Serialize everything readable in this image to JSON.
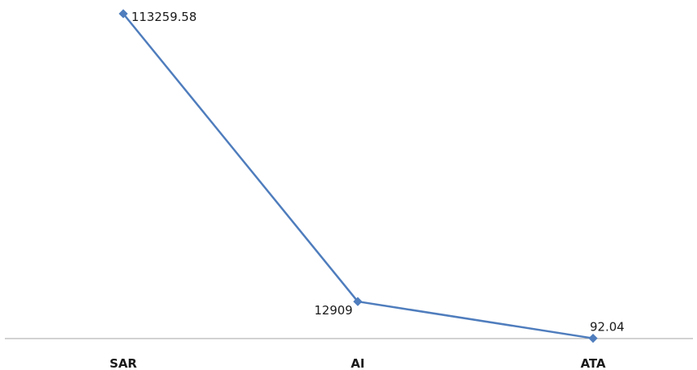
{
  "chart_data": {
    "type": "line",
    "categories": [
      "SAR",
      "AI",
      "ATA"
    ],
    "values": [
      113259.58,
      12909,
      92.04
    ],
    "data_labels": [
      "113259.58",
      "12909",
      "92.04"
    ],
    "title": "",
    "xlabel": "",
    "ylabel": "",
    "ylim": [
      0,
      113259.58
    ],
    "grid": false,
    "legend": "none",
    "colors": {
      "line": "#4f7dbd",
      "marker": "#4f7dbd",
      "axis": "#a6a6a6"
    }
  }
}
